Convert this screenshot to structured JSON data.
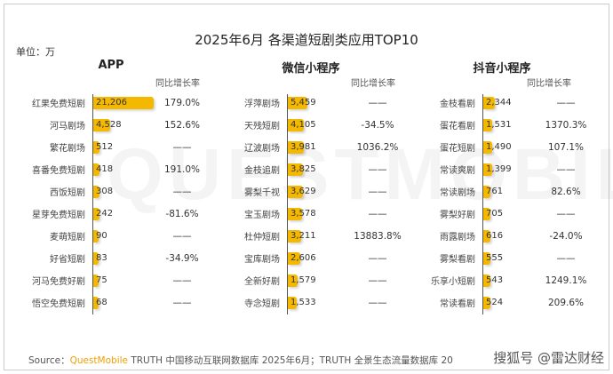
{
  "chart_data": {
    "type": "bar",
    "title": "2025年6月 各渠道短剧类应用TOP10",
    "unit_label": "单位：万",
    "growth_header": "同比增长率",
    "panels": [
      {
        "name": "APP",
        "categories": [
          "红果免费短剧",
          "河马剧场",
          "繁花剧场",
          "喜番免费短剧",
          "西饭短剧",
          "星芽免费短剧",
          "麦萌短剧",
          "好省短剧",
          "河马免费好剧",
          "悟空免费短剧"
        ],
        "values": [
          21206,
          4528,
          512,
          418,
          308,
          242,
          90,
          83,
          75,
          68
        ],
        "labels": [
          "21,206",
          "4,528",
          "512",
          "418",
          "308",
          "242",
          "90",
          "83",
          "75",
          "68"
        ],
        "growth": [
          "179.0%",
          "152.6%",
          "——",
          "191.0%",
          "——",
          "-81.6%",
          "——",
          "-34.9%",
          "——",
          "——"
        ]
      },
      {
        "name": "微信小程序",
        "categories": [
          "浮萍剧场",
          "天残短剧",
          "辽波剧场",
          "金枝追剧",
          "雾梨千视",
          "宝玉剧场",
          "杜仲短剧",
          "宝库剧场",
          "全新好剧",
          "寺念短剧"
        ],
        "values": [
          5459,
          4105,
          3981,
          3825,
          3629,
          3578,
          3211,
          2606,
          1579,
          1533
        ],
        "labels": [
          "5,459",
          "4,105",
          "3,981",
          "3,825",
          "3,629",
          "3,578",
          "3,211",
          "2,606",
          "1,579",
          "1,533"
        ],
        "growth": [
          "——",
          "-34.5%",
          "1036.2%",
          "——",
          "——",
          "——",
          "13883.8%",
          "——",
          "——",
          "——"
        ]
      },
      {
        "name": "抖音小程序",
        "categories": [
          "金枝看剧",
          "蛋花看剧",
          "蛋花短剧",
          "常读爽剧",
          "常读剧场",
          "雾梨好剧",
          "雨露剧场",
          "雾梨看剧",
          "乐享小短剧",
          "常读看剧"
        ],
        "values": [
          2344,
          1531,
          1490,
          1399,
          761,
          705,
          616,
          555,
          543,
          524
        ],
        "labels": [
          "2,344",
          "1,531",
          "1,490",
          "1,399",
          "761",
          "705",
          "616",
          "555",
          "543",
          "524"
        ],
        "growth": [
          "——",
          "1370.3%",
          "107.1%",
          "——",
          "82.6%",
          "——",
          "-24.0%",
          "——",
          "1249.1%",
          "209.6%"
        ]
      }
    ],
    "bar_color": "#f5b800"
  },
  "watermark_text": "QUESTMOBILE",
  "footer": {
    "prefix": "Source：",
    "brand": "QuestMobile",
    "text": " TRUTH 中国移动互联网数据库 2025年6月；TRUTH 全景生态流量数据库 20"
  },
  "overlay": "搜狐号 @雷达财经"
}
